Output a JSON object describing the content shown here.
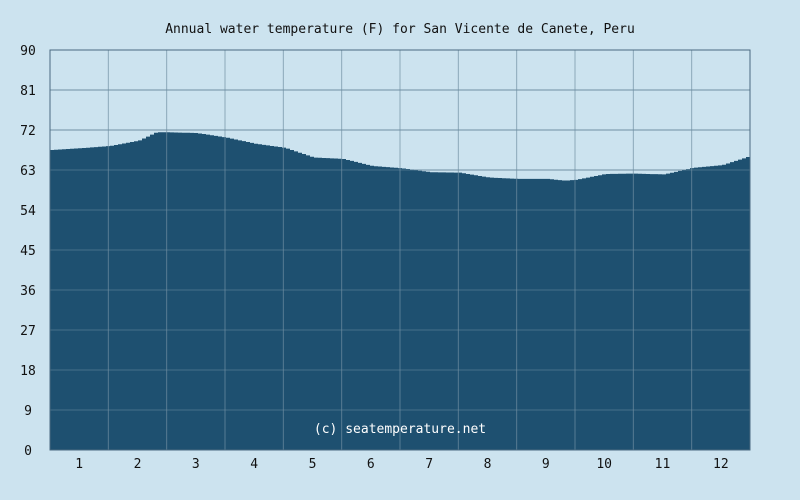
{
  "chart_data": {
    "type": "area",
    "title": "Annual water temperature (F) for San Vicente de Canete, Peru",
    "watermark": "(c) seatemperature.net",
    "xlabel": "",
    "ylabel": "",
    "x_ticks": [
      "1",
      "2",
      "3",
      "4",
      "5",
      "6",
      "7",
      "8",
      "9",
      "10",
      "11",
      "12"
    ],
    "y_ticks": [
      "0",
      "9",
      "18",
      "27",
      "36",
      "45",
      "54",
      "63",
      "72",
      "81",
      "90"
    ],
    "ylim": [
      0,
      90
    ],
    "xlim": [
      0.5,
      12.5
    ],
    "grid": true,
    "colors": {
      "background": "#cce3ef",
      "fill": "#1e5070",
      "grid": "#6f8fa3",
      "border": "#4a6a80"
    },
    "x": [
      0.5,
      1.0,
      1.5,
      2.0,
      2.3,
      2.5,
      3.0,
      3.5,
      4.0,
      4.5,
      5.0,
      5.5,
      6.0,
      6.5,
      7.0,
      7.5,
      8.0,
      8.5,
      9.0,
      9.3,
      9.5,
      10.0,
      10.5,
      11.0,
      11.5,
      12.0,
      12.5
    ],
    "values": [
      67.5,
      67.9,
      68.4,
      69.6,
      71.5,
      71.5,
      71.3,
      70.3,
      68.9,
      68.0,
      65.8,
      65.5,
      63.9,
      63.4,
      62.5,
      62.4,
      61.3,
      61.0,
      61.0,
      60.6,
      60.8,
      62.1,
      62.2,
      62.0,
      63.5,
      64.1,
      66.2
    ]
  }
}
